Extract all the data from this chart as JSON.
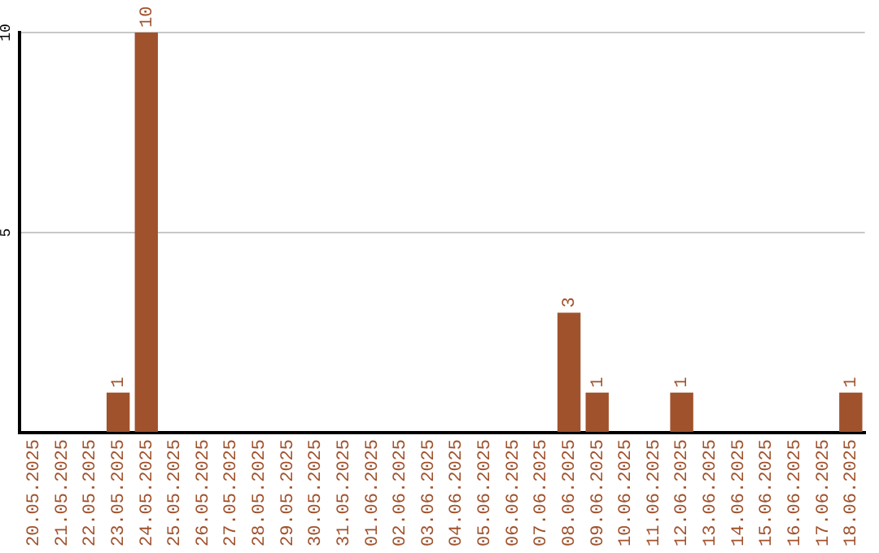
{
  "chart_data": {
    "type": "bar",
    "categories": [
      "20.05.2025",
      "21.05.2025",
      "22.05.2025",
      "23.05.2025",
      "24.05.2025",
      "25.05.2025",
      "26.05.2025",
      "27.05.2025",
      "28.05.2025",
      "29.05.2025",
      "30.05.2025",
      "31.05.2025",
      "01.06.2025",
      "02.06.2025",
      "03.06.2025",
      "04.06.2025",
      "05.06.2025",
      "06.06.2025",
      "07.06.2025",
      "08.06.2025",
      "09.06.2025",
      "10.06.2025",
      "11.06.2025",
      "12.06.2025",
      "13.06.2025",
      "14.06.2025",
      "15.06.2025",
      "16.06.2025",
      "17.06.2025",
      "18.06.2025"
    ],
    "values": [
      0,
      0,
      0,
      1,
      10,
      0,
      0,
      0,
      0,
      0,
      0,
      0,
      0,
      0,
      0,
      0,
      0,
      0,
      0,
      3,
      1,
      0,
      0,
      1,
      0,
      0,
      0,
      0,
      0,
      1
    ],
    "value_labels": [
      null,
      null,
      null,
      "1",
      "10",
      null,
      null,
      null,
      null,
      null,
      null,
      null,
      null,
      null,
      null,
      null,
      null,
      null,
      null,
      "3",
      "1",
      null,
      null,
      "1",
      null,
      null,
      null,
      null,
      null,
      "1"
    ],
    "color": "#a0522d",
    "ylim": [
      0,
      10
    ],
    "yticks": [
      {
        "value": 0,
        "label": null
      },
      5,
      10
    ],
    "grid": "y",
    "legend": false
  }
}
